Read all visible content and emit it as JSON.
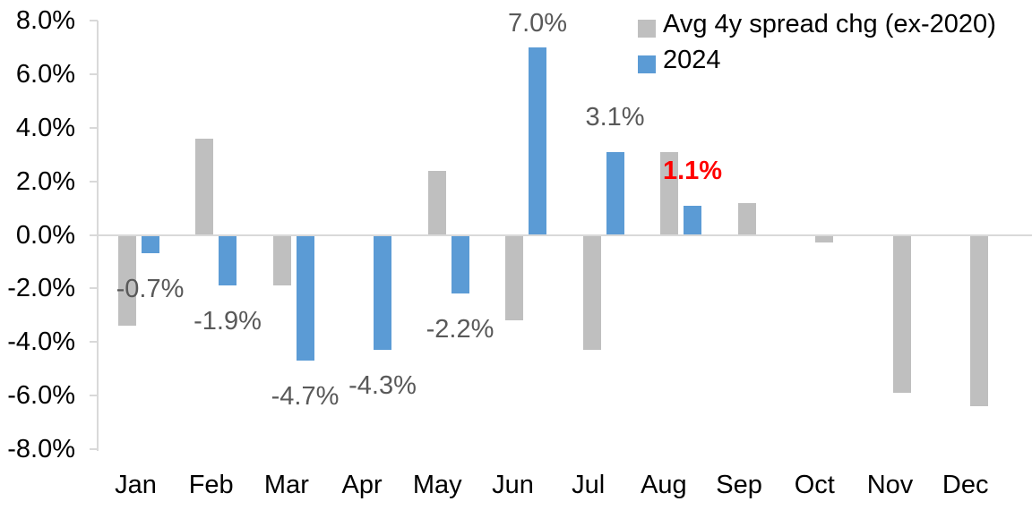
{
  "chart_data": {
    "type": "bar",
    "title": "",
    "xlabel": "",
    "ylabel": "",
    "grid": false,
    "legend_position": "top-right",
    "background_color": "#FFFFFF",
    "axis_color": "#D9D9D9",
    "tick_text_color": "#000000",
    "categories": [
      "Jan",
      "Feb",
      "Mar",
      "Apr",
      "May",
      "Jun",
      "Jul",
      "Aug",
      "Sep",
      "Oct",
      "Nov",
      "Dec"
    ],
    "series": [
      {
        "name": "Avg 4y spread chg (ex-2020)",
        "color": "#BFBFBF",
        "values": [
          -3.4,
          3.6,
          -1.9,
          0.0,
          2.4,
          -3.2,
          -4.3,
          3.1,
          1.2,
          -0.3,
          -5.9,
          -6.4
        ]
      },
      {
        "name": "2024",
        "color": "#5B9BD5",
        "values": [
          -0.7,
          -1.9,
          -4.7,
          -4.3,
          -2.2,
          7.0,
          3.1,
          1.1,
          null,
          null,
          null,
          null
        ]
      }
    ],
    "data_labels": {
      "series": "2024",
      "items": [
        {
          "category": "Jan",
          "text": "-0.7%",
          "color": "#595959",
          "bold": false
        },
        {
          "category": "Feb",
          "text": "-1.9%",
          "color": "#595959",
          "bold": false
        },
        {
          "category": "Mar",
          "text": "-4.7%",
          "color": "#595959",
          "bold": false
        },
        {
          "category": "Apr",
          "text": "-4.3%",
          "color": "#595959",
          "bold": false
        },
        {
          "category": "May",
          "text": "-2.2%",
          "color": "#595959",
          "bold": false
        },
        {
          "category": "Jun",
          "text": "7.0%",
          "color": "#595959",
          "bold": false
        },
        {
          "category": "Jul",
          "text": "3.1%",
          "color": "#595959",
          "bold": false
        },
        {
          "category": "Aug",
          "text": "1.1%",
          "color": "#FF0000",
          "bold": true
        }
      ]
    },
    "y_ticks": [
      {
        "value": 8,
        "label": "8.0%"
      },
      {
        "value": 6,
        "label": "6.0%"
      },
      {
        "value": 4,
        "label": "4.0%"
      },
      {
        "value": 2,
        "label": "2.0%"
      },
      {
        "value": 0,
        "label": "0.0%"
      },
      {
        "value": -2,
        "label": "-2.0%"
      },
      {
        "value": -4,
        "label": "-4.0%"
      },
      {
        "value": -6,
        "label": "-6.0%"
      },
      {
        "value": -8,
        "label": "-8.0%"
      }
    ],
    "ylim": [
      -8,
      8
    ]
  }
}
